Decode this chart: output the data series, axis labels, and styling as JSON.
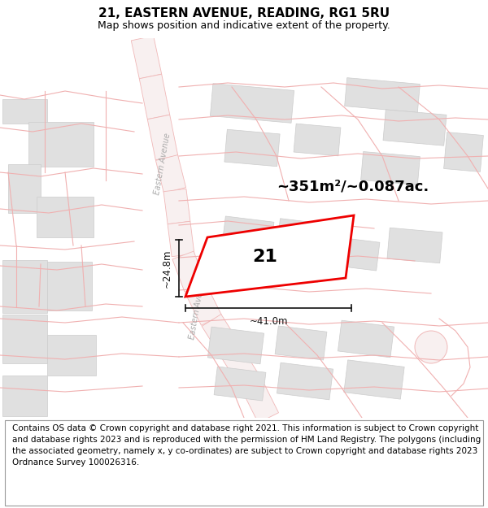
{
  "title": "21, EASTERN AVENUE, READING, RG1 5RU",
  "subtitle": "Map shows position and indicative extent of the property.",
  "footer_line1": "Contains OS data © Crown copyright and database right 2021. This information is subject to Crown copyright and database rights 2023 and is reproduced with the permission of",
  "footer_line2": "HM Land Registry. The polygons (including the associated geometry, namely x, y co-ordinates) are subject to Crown copyright and database rights 2023 Ordnance Survey 100026316.",
  "footer": "Contains OS data © Crown copyright and database right 2021. This information is subject to Crown copyright and database rights 2023 and is reproduced with the permission of HM Land Registry. The polygons (including the associated geometry, namely x, y co-ordinates) are subject to Crown copyright and database rights 2023 Ordnance Survey 100026316.",
  "area_label": "~351m²/~0.087ac.",
  "number_label": "21",
  "width_label": "~41.0m",
  "height_label": "~24.8m",
  "road_label": "Eastern Avenue",
  "map_bg": "#ffffff",
  "plot_edge": "#ee0000",
  "plot_fill": "#ffffff",
  "building_face": "#e0e0e0",
  "building_edge": "#cccccc",
  "road_face": "#f8f0f0",
  "road_edge": "#f0b8b8",
  "pink_line": "#f0b0b0",
  "dim_color": "#111111",
  "road_text_color": "#aaaaaa",
  "title_fontsize": 11,
  "subtitle_fontsize": 9,
  "footer_fontsize": 7.5,
  "area_fontsize": 13,
  "number_fontsize": 16,
  "dim_fontsize": 8.5,
  "road_fontsize": 7
}
